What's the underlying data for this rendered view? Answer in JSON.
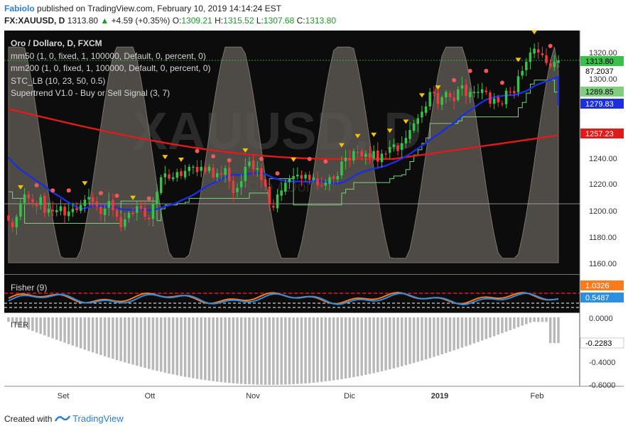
{
  "header": {
    "author": "Fabiolo",
    "published": "published on TradingView.com, February 10, 2019 14:14:24 EST",
    "symbol": "FX:XAUUSD, D",
    "last": "1313.80",
    "change": "+4.59 (+0.35%)",
    "o_label": "O:",
    "o": "1309.21",
    "h_label": "H:",
    "h": "1315.52",
    "l_label": "L:",
    "l": "1307.68",
    "c_label": "C:",
    "c": "1313.80"
  },
  "legend": [
    "Oro / Dollaro, D, FXCM",
    "mm50 (1, 0, fixed, 1, 100000, Default, 0, percent, 0)",
    "mm200 (1, 0, fixed, 1, 100000, Default, 0, percent, 0)",
    "STC_LB (10, 23, 50, 0.5)",
    "Supertrend V1.0 - Buy or Sell Signal (3, 7)"
  ],
  "watermark": "XAUUSD, D",
  "watermark_sub": "Oro / Dollaro",
  "fisher_label": "Fisher (9)",
  "stcr_label": "ITER",
  "footer": {
    "created": "Created with",
    "brand": "TradingView"
  },
  "colors": {
    "panel_bg": "#0c0c0c",
    "stc_fill": "#5a5650",
    "mm50": "#1b2ee0",
    "mm200": "#e01b1b",
    "supertrend": "#7fcf7f",
    "bull": "#39c24a",
    "bear": "#ef3b3b",
    "marker_down": "#f5c400",
    "fisher1": "#ff7a1a",
    "fisher2": "#2c8fe0",
    "histogram": "#b8b8b8"
  },
  "chart_data": {
    "type": "candlestick",
    "x_ticks": [
      "Set",
      "Ott",
      "Nov",
      "Dic",
      "2019",
      "Feb"
    ],
    "price_axis": {
      "ticks": [
        "1320.00",
        "1300.00",
        "1240.00",
        "1220.00",
        "1200.00",
        "1180.00",
        "1160.00"
      ],
      "range": [
        1155,
        1330
      ],
      "labels": [
        {
          "value": "1313.80",
          "color": "#39c24a",
          "text_color": "#000000"
        },
        {
          "value": "87.2037",
          "color": "#ffffff",
          "text_color": "#000000"
        },
        {
          "value": "1289.85",
          "color": "#7fcf7f",
          "text_color": "#000000"
        },
        {
          "value": "1279.83",
          "color": "#1b2ee0",
          "text_color": "#ffffff"
        },
        {
          "value": "1257.23",
          "color": "#e01b1b",
          "text_color": "#ffffff"
        }
      ]
    },
    "close": [
      1192,
      1187,
      1195,
      1205,
      1212,
      1209,
      1206,
      1203,
      1210,
      1198,
      1201,
      1199,
      1200,
      1203,
      1196,
      1199,
      1201,
      1200,
      1204,
      1208,
      1210,
      1206,
      1203,
      1197,
      1201,
      1207,
      1200,
      1195,
      1187,
      1193,
      1198,
      1197,
      1203,
      1201,
      1195,
      1193,
      1205,
      1214,
      1225,
      1228,
      1224,
      1225,
      1229,
      1226,
      1230,
      1233,
      1233,
      1229,
      1233,
      1229,
      1233,
      1225,
      1228,
      1227,
      1232,
      1222,
      1213,
      1217,
      1222,
      1233,
      1237,
      1231,
      1232,
      1223,
      1218,
      1204,
      1202,
      1212,
      1215,
      1221,
      1224,
      1226,
      1227,
      1224,
      1227,
      1223,
      1225,
      1219,
      1219,
      1221,
      1225,
      1224,
      1226,
      1237,
      1240,
      1238,
      1245,
      1244,
      1241,
      1243,
      1240,
      1245,
      1237,
      1243,
      1243,
      1248,
      1250,
      1245,
      1251,
      1255,
      1261,
      1266,
      1270,
      1275,
      1279,
      1290,
      1289,
      1281,
      1286,
      1290,
      1286,
      1283,
      1292,
      1295,
      1287,
      1290,
      1290,
      1290,
      1292,
      1290,
      1281,
      1285,
      1282,
      1281,
      1291,
      1290,
      1289,
      1302,
      1306,
      1313,
      1320,
      1323,
      1320,
      1318,
      1312,
      1309,
      1313,
      1314
    ],
    "mm50_start_end": [
      1240,
      1280
    ],
    "mm200_start_end": [
      1277,
      1257
    ],
    "supertrend_last": 1289.85,
    "stc_last": 87.2037,
    "fisher_axis": {
      "ticks": [],
      "labels": [
        {
          "value": "1.0326",
          "color": "#ff7a1a",
          "text_color": "#ffffff"
        },
        {
          "value": "0.5487",
          "color": "#2c8fe0",
          "text_color": "#ffffff"
        }
      ]
    },
    "stcr_axis": {
      "ticks": [
        "0.0000",
        "-0.4000",
        "-0.6000"
      ],
      "range": [
        -0.6,
        0
      ],
      "labels": [
        {
          "value": "-0.2283",
          "color": "#ffffff",
          "text_color": "#000000"
        }
      ]
    }
  }
}
